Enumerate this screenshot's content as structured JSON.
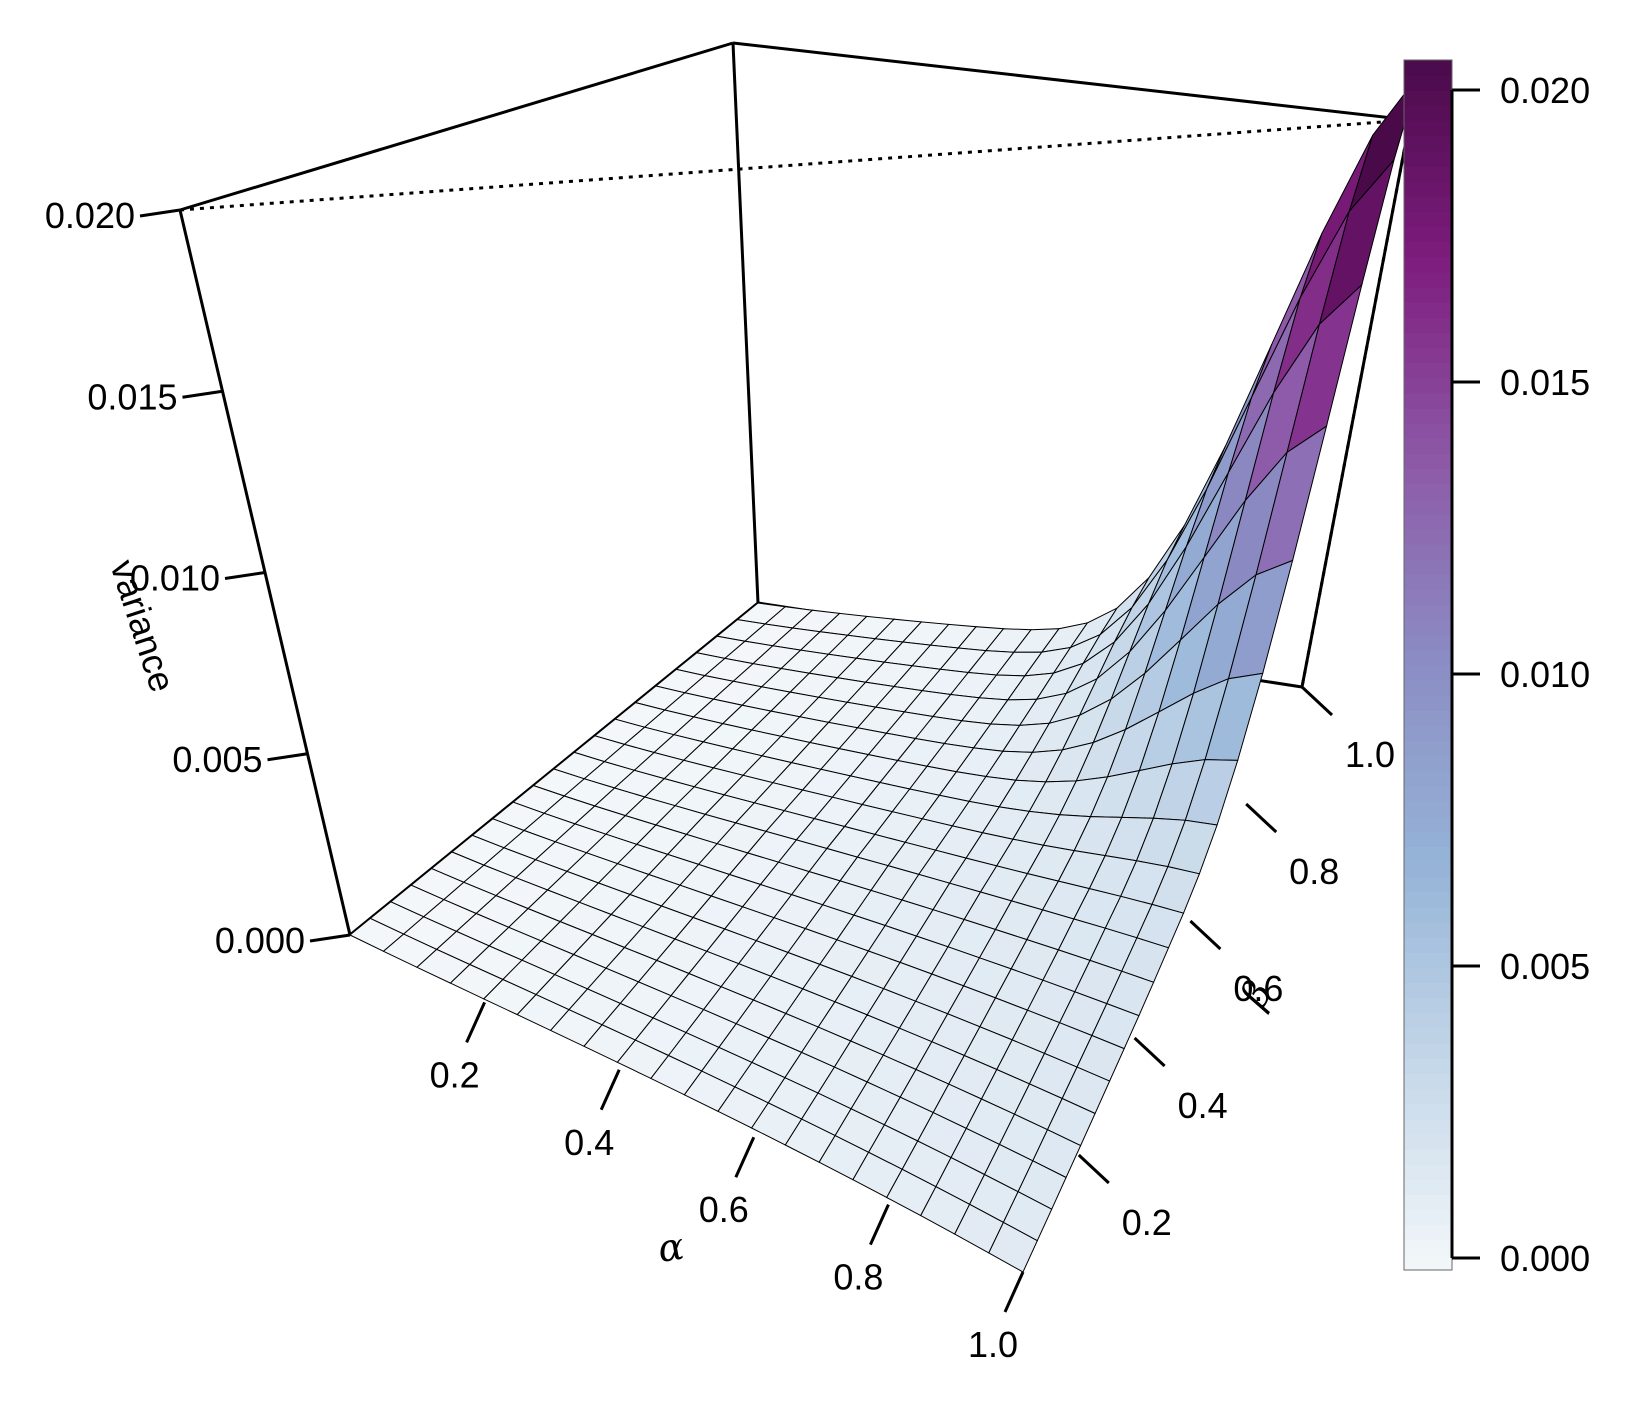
{
  "chart_data": {
    "type": "surface",
    "xlabel": "α",
    "ylabel": "β",
    "zlabel": "variance",
    "xlim": [
      0,
      1
    ],
    "ylim": [
      0,
      1
    ],
    "zlim": [
      0,
      0.02
    ],
    "x_ticks": [
      "0.2",
      "0.4",
      "0.6",
      "0.8",
      "1.0"
    ],
    "y_ticks": [
      "0.2",
      "0.4",
      "0.6",
      "0.8",
      "1.0"
    ],
    "z_ticks": [
      "0.000",
      "0.005",
      "0.010",
      "0.015",
      "0.020"
    ],
    "colorbar": {
      "range": [
        0,
        0.02
      ],
      "ticks": [
        "0.000",
        "0.005",
        "0.010",
        "0.015",
        "0.020"
      ],
      "colors": [
        "#f3f7fa",
        "#c6d8e9",
        "#96b4d8",
        "#8b8ec4",
        "#8d5aa8",
        "#7e1d7e",
        "#4a0a4a"
      ]
    },
    "surface": {
      "grid": [
        0,
        0.05,
        0.1,
        0.15,
        0.2,
        0.25,
        0.3,
        0.35,
        0.4,
        0.45,
        0.5,
        0.55,
        0.6,
        0.65,
        0.7,
        0.75,
        0.8,
        0.85,
        0.9,
        0.95,
        1.0
      ],
      "peak": {
        "alpha": 1.0,
        "beta": 1.0,
        "variance": 0.0202
      },
      "ridge_value_near_alpha_1": 0.0021,
      "value_at_alpha_0": 0.0
    }
  }
}
